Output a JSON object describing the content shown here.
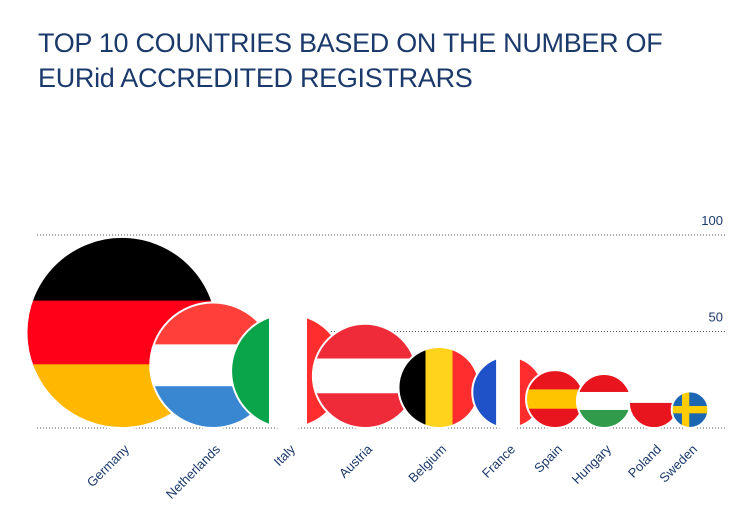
{
  "chart_data": {
    "type": "flag-bubble",
    "title": "TOP 10 COUNTRIES BASED ON THE NUMBER OF EURid ACCREDITED REGISTRARS",
    "categories": [
      "Germany",
      "Netherlands",
      "Italy",
      "Austria",
      "Belgium",
      "France",
      "Spain",
      "Hungary",
      "Poland",
      "Sweden"
    ],
    "values": [
      99,
      65,
      59,
      54,
      42,
      37,
      30,
      28,
      26,
      19
    ],
    "flags": [
      {
        "pattern": "h",
        "colors": [
          "#000000",
          "#ff0018",
          "#ffb700"
        ]
      },
      {
        "pattern": "h",
        "colors": [
          "#ff3f3a",
          "#ffffff",
          "#3a87d1"
        ]
      },
      {
        "pattern": "v",
        "colors": [
          "#0aa54a",
          "#ffffff",
          "#ff2d2d"
        ]
      },
      {
        "pattern": "h",
        "colors": [
          "#ef2b3a",
          "#ffffff",
          "#ef2b3a"
        ]
      },
      {
        "pattern": "v",
        "colors": [
          "#000000",
          "#ffd21c",
          "#ff2d2d"
        ]
      },
      {
        "pattern": "v",
        "colors": [
          "#1f52c9",
          "#ffffff",
          "#ff2d2d"
        ]
      },
      {
        "pattern": "h",
        "colors": [
          "#e8141e",
          "#ffc400",
          "#e8141e"
        ]
      },
      {
        "pattern": "h",
        "colors": [
          "#e8141e",
          "#ffffff",
          "#2f9b4b"
        ]
      },
      {
        "pattern": "h",
        "colors": [
          "#ffffff",
          "#e8141e"
        ]
      },
      {
        "pattern": "cross",
        "colors": [
          "#1d66b2",
          "#ffcc00"
        ]
      }
    ],
    "ylim": [
      0,
      100
    ],
    "yticks": [
      50,
      100
    ],
    "grid": true
  }
}
